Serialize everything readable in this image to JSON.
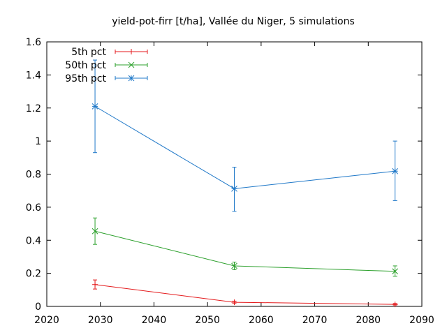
{
  "chart_data": {
    "type": "line",
    "title": "yield-pot-firr [t/ha], Vallée du Niger, 5 simulations",
    "xlabel": "",
    "ylabel": "",
    "xlim": [
      2020,
      2090
    ],
    "ylim": [
      0,
      1.6
    ],
    "x_ticks": [
      "2020",
      "2030",
      "2040",
      "2050",
      "2060",
      "2070",
      "2080",
      "2090"
    ],
    "y_ticks": [
      "0",
      "0.2",
      "0.4",
      "0.6",
      "0.8",
      "1",
      "1.2",
      "1.4",
      "1.6"
    ],
    "grid": false,
    "legend_position": "top-left",
    "x": [
      2029,
      2055,
      2085
    ],
    "series": [
      {
        "name": "5th pct",
        "color": "#e41a1c",
        "marker": "plus",
        "values": [
          0.132,
          0.025,
          0.012
        ],
        "err_low": [
          0.105,
          0.018,
          0.008
        ],
        "err_high": [
          0.16,
          0.032,
          0.018
        ]
      },
      {
        "name": "50th pct",
        "color": "#2ca02c",
        "marker": "x",
        "values": [
          0.455,
          0.245,
          0.212
        ],
        "err_low": [
          0.375,
          0.222,
          0.182
        ],
        "err_high": [
          0.535,
          0.268,
          0.245
        ]
      },
      {
        "name": "95th pct",
        "color": "#1f78c8",
        "marker": "star",
        "values": [
          1.21,
          0.712,
          0.818
        ],
        "err_low": [
          0.93,
          0.575,
          0.64
        ],
        "err_high": [
          1.49,
          0.842,
          1.0
        ]
      }
    ]
  }
}
